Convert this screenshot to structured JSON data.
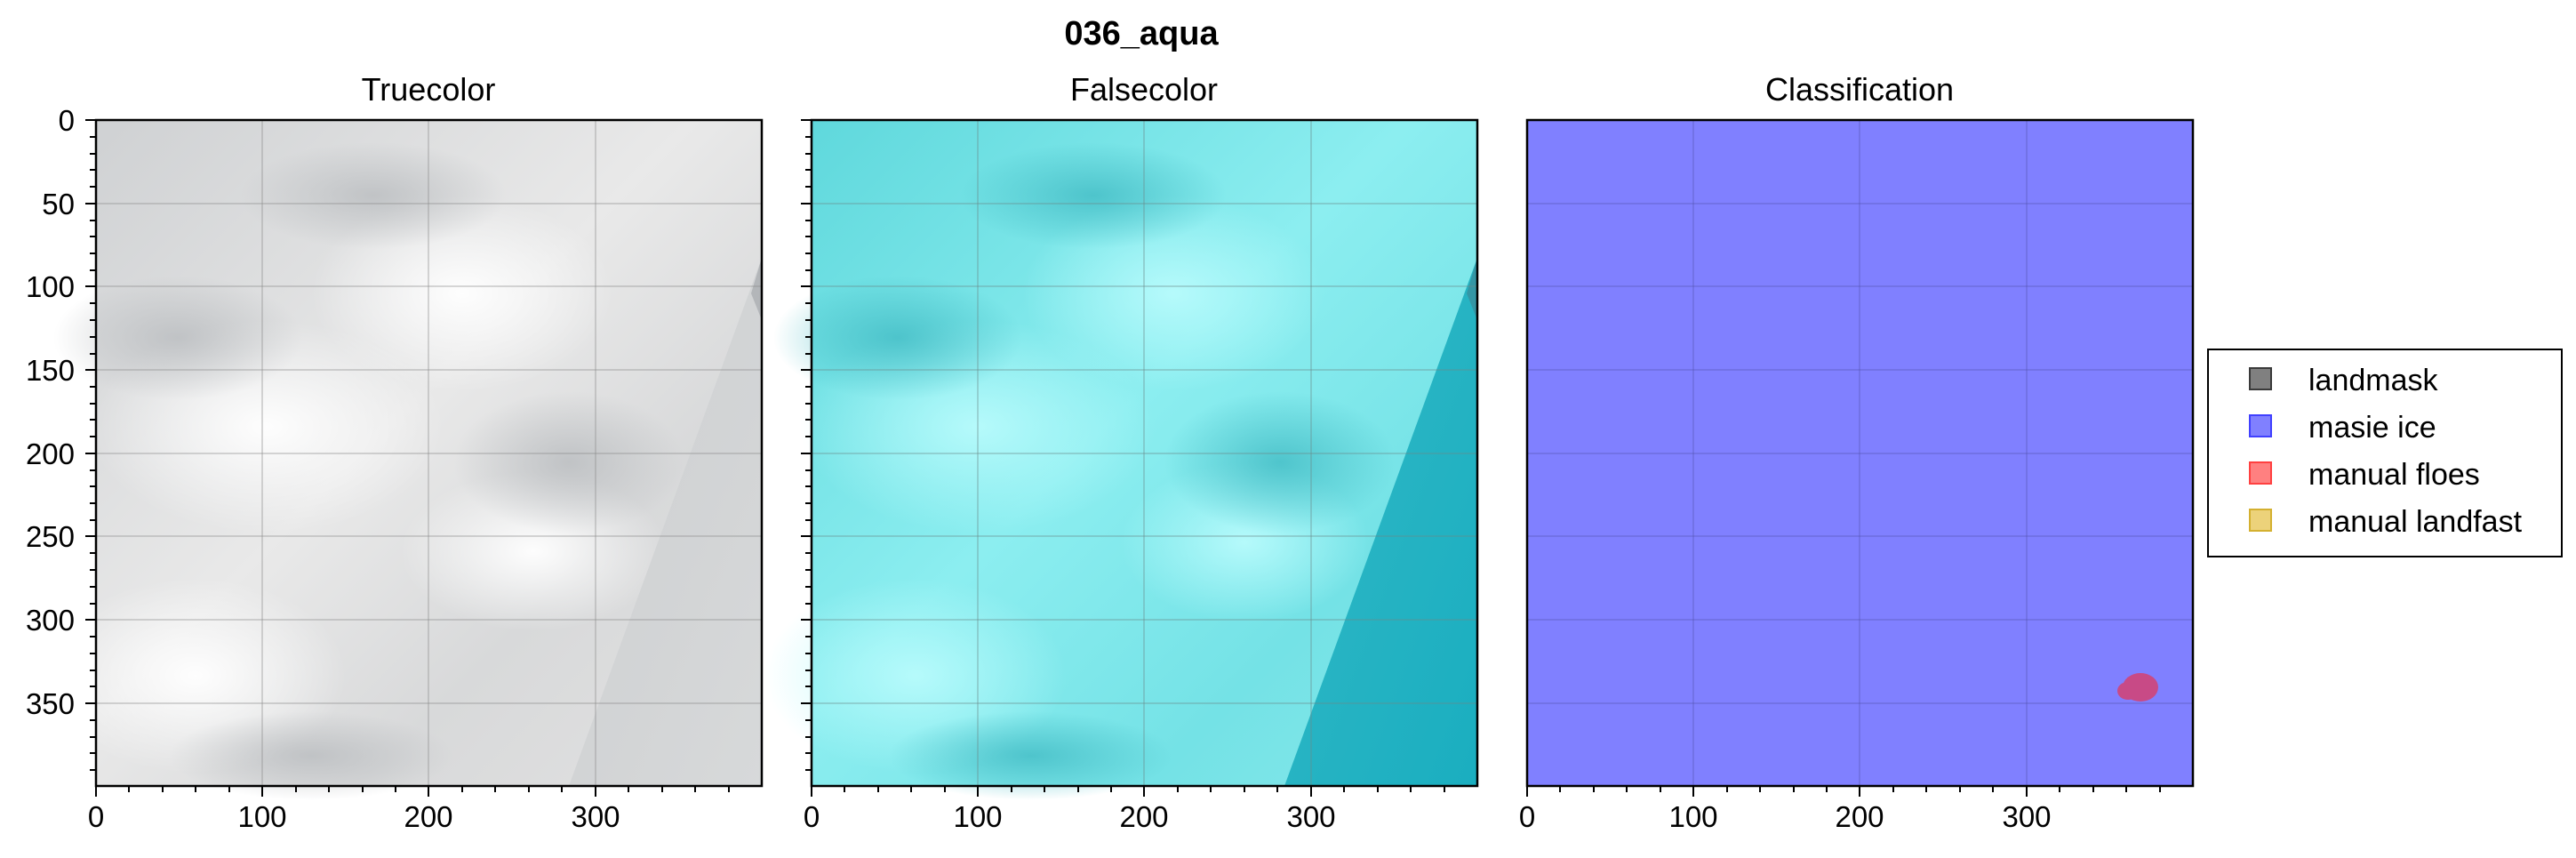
{
  "figure": {
    "suptitle": "036_aqua",
    "colors": {
      "landmask": "#808080",
      "masie_ice": "#8080ff",
      "manual_floes": "#ff8080",
      "manual_landfast": "#ecd27a",
      "floe_blob": "#c84a86"
    }
  },
  "panels": [
    {
      "title": "Truecolor",
      "kind": "truecolor"
    },
    {
      "title": "Falsecolor",
      "kind": "falsecolor"
    },
    {
      "title": "Classification",
      "kind": "classification"
    }
  ],
  "axes": {
    "x_ticks": [
      "0",
      "100",
      "200",
      "300"
    ],
    "y_ticks": [
      "0",
      "50",
      "100",
      "150",
      "200",
      "250",
      "300",
      "350"
    ],
    "xlim": [
      0,
      400
    ],
    "ylim": [
      400,
      0
    ],
    "grid": true
  },
  "legend": {
    "placement": "right",
    "items": [
      {
        "label": "landmask",
        "color": "#808080"
      },
      {
        "label": "masie ice",
        "color": "#8080ff"
      },
      {
        "label": "manual floes",
        "color": "#ff8080"
      },
      {
        "label": "manual landfast",
        "color": "#ecd27a"
      }
    ]
  }
}
